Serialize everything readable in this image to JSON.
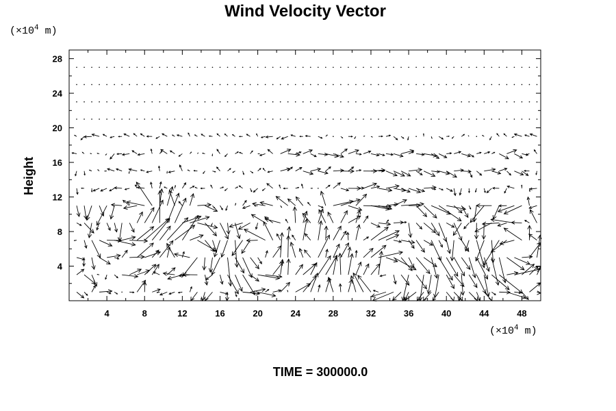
{
  "chart_data": {
    "type": "vector-field",
    "title": "Wind Velocity Vector",
    "ylabel": "Height",
    "x_unit_prefix": "(×10",
    "x_unit_exp": "4",
    "x_unit_suffix": " m)",
    "y_unit_prefix": "(×10",
    "y_unit_exp": "4",
    "y_unit_suffix": " m)",
    "xlim": [
      0,
      50
    ],
    "ylim": [
      0,
      29
    ],
    "x_ticks": [
      4,
      8,
      12,
      16,
      20,
      24,
      28,
      32,
      36,
      40,
      44,
      48
    ],
    "y_ticks": [
      4,
      8,
      12,
      16,
      20,
      24,
      28
    ],
    "x_minor_step": 2,
    "y_minor_step": 2,
    "grid": false,
    "grid_x_step": 0.8,
    "grid_y_step": 2.0,
    "vector_color": "#000000",
    "field_model": {
      "zones": [
        {
          "y_range": [
            21,
            29
          ],
          "strength": 0.02
        },
        {
          "y_range": [
            19,
            21
          ],
          "strength": 0.35,
          "mean_u": -0.6
        },
        {
          "y_range": [
            12,
            19
          ],
          "strength": 0.5
        },
        {
          "y_range": [
            0,
            12
          ],
          "strength": 1.0
        }
      ],
      "strong_jets": [
        {
          "x_range": [
            22,
            48
          ],
          "y": 16,
          "u": 1.2
        },
        {
          "x_range": [
            28,
            40
          ],
          "y": 12,
          "u": 1.0
        },
        {
          "x_range": [
            26,
            44
          ],
          "y": 20,
          "u": 0.9
        }
      ],
      "vortices": [
        {
          "x": 7,
          "y": 9,
          "sign": 1
        },
        {
          "x": 13,
          "y": 6,
          "sign": -1
        },
        {
          "x": 20,
          "y": 5,
          "sign": 1
        },
        {
          "x": 34,
          "y": 3,
          "sign": -1
        },
        {
          "x": 47,
          "y": 6,
          "sign": 1
        }
      ]
    }
  },
  "footer": {
    "label": "TIME = 300000.0"
  }
}
